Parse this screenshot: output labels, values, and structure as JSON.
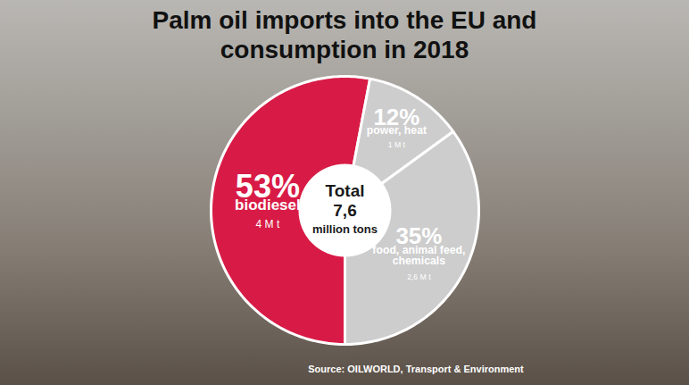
{
  "chart_data": {
    "type": "pie",
    "title": "Palm oil imports into the EU and consumption in 2018",
    "categories": [
      "biodiesel",
      "power, heat",
      "food, animal feed, chemicals"
    ],
    "values": [
      53,
      12,
      35
    ],
    "value_labels": [
      "53%",
      "12%",
      "35%"
    ],
    "data_labels": true,
    "colors": [
      "#d81b46",
      "#cdcdcd",
      "#cdcdcd"
    ],
    "amounts": [
      {
        "value": 4,
        "label": "4 M t"
      },
      {
        "value": 1,
        "label": "1 M t"
      },
      {
        "value": 2.6,
        "label": "2,6 M t"
      }
    ],
    "total_label": "Total",
    "total": {
      "value": 7.6,
      "label": "7,6"
    },
    "total_unit": "million tons",
    "source": "Source: OILWORLD, Transport & Environment"
  }
}
